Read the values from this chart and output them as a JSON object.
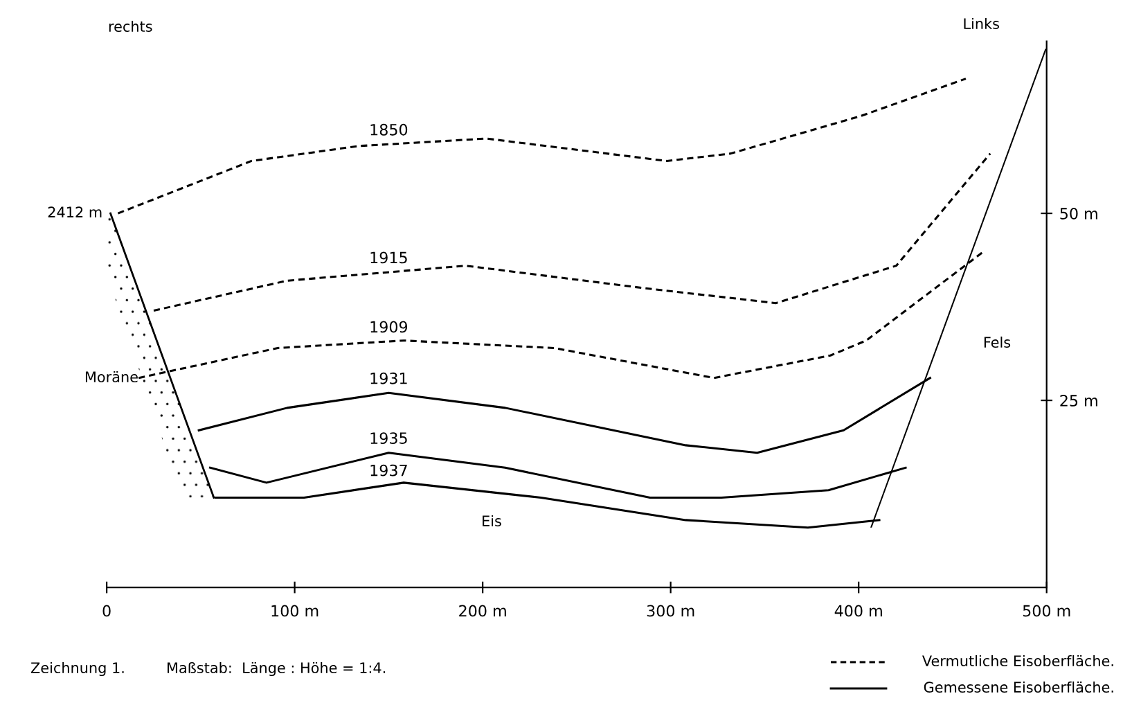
{
  "chart_data": {
    "type": "line",
    "series": [
      {
        "name": "1850",
        "color": "#000000",
        "line_style": "dashed",
        "x": [
          6,
          77,
          134,
          202,
          298,
          332,
          401,
          457
        ],
        "values": [
          50,
          57,
          59,
          60,
          57,
          58,
          63,
          68
        ]
      },
      {
        "name": "1915",
        "color": "#000000",
        "line_style": "dashed",
        "x": [
          25,
          96,
          191,
          286,
          356,
          420,
          470
        ],
        "values": [
          37,
          41,
          43,
          40,
          38,
          43,
          58
        ]
      },
      {
        "name": "1909",
        "color": "#000000",
        "line_style": "dashed",
        "x": [
          17,
          91,
          158,
          238,
          323,
          385,
          404,
          467
        ],
        "values": [
          28,
          32,
          33,
          32,
          28,
          31,
          33,
          45
        ]
      },
      {
        "name": "1931",
        "color": "#000000",
        "line_style": "solid",
        "x": [
          49,
          96,
          150,
          212,
          308,
          346,
          392,
          438
        ],
        "values": [
          21,
          24,
          26,
          24,
          19,
          18,
          21,
          28
        ]
      },
      {
        "name": "1935",
        "color": "#000000",
        "line_style": "solid",
        "x": [
          55,
          85,
          150,
          212,
          289,
          327,
          384,
          425
        ],
        "values": [
          16,
          14,
          18,
          16,
          12,
          12,
          13,
          16
        ]
      },
      {
        "name": "1937",
        "color": "#000000",
        "line_style": "solid",
        "x": [
          58,
          105,
          158,
          231,
          308,
          373,
          411
        ],
        "values": [
          12,
          12,
          14,
          12,
          9,
          8,
          9
        ]
      }
    ],
    "xlim": [
      0,
      500
    ],
    "ylim": [
      0,
      73
    ],
    "xticks": [
      0,
      {
        "value": 100,
        "label": "100 m"
      },
      {
        "value": 200,
        "label": "200 m"
      },
      {
        "value": 300,
        "label": "300 m"
      },
      {
        "value": 400,
        "label": "400 m"
      },
      {
        "value": 500,
        "label": "500 m"
      }
    ],
    "yticks": [
      {
        "value": 25,
        "label": "25 m"
      },
      {
        "value": 50,
        "label": "50 m"
      }
    ],
    "grid": false,
    "legend": false,
    "marker": "none",
    "annotations": [
      "rechts",
      "Links",
      {
        "text": "2412 m",
        "x": 6,
        "y": 50
      },
      "Moräne",
      "Fels",
      "Eis",
      "Zeichnung 1.",
      "Maßstab:  Länge : Höhe = 1:4.",
      "Vermutliche Eisoberfläche.",
      "Gemessene Eisoberfläche."
    ]
  }
}
